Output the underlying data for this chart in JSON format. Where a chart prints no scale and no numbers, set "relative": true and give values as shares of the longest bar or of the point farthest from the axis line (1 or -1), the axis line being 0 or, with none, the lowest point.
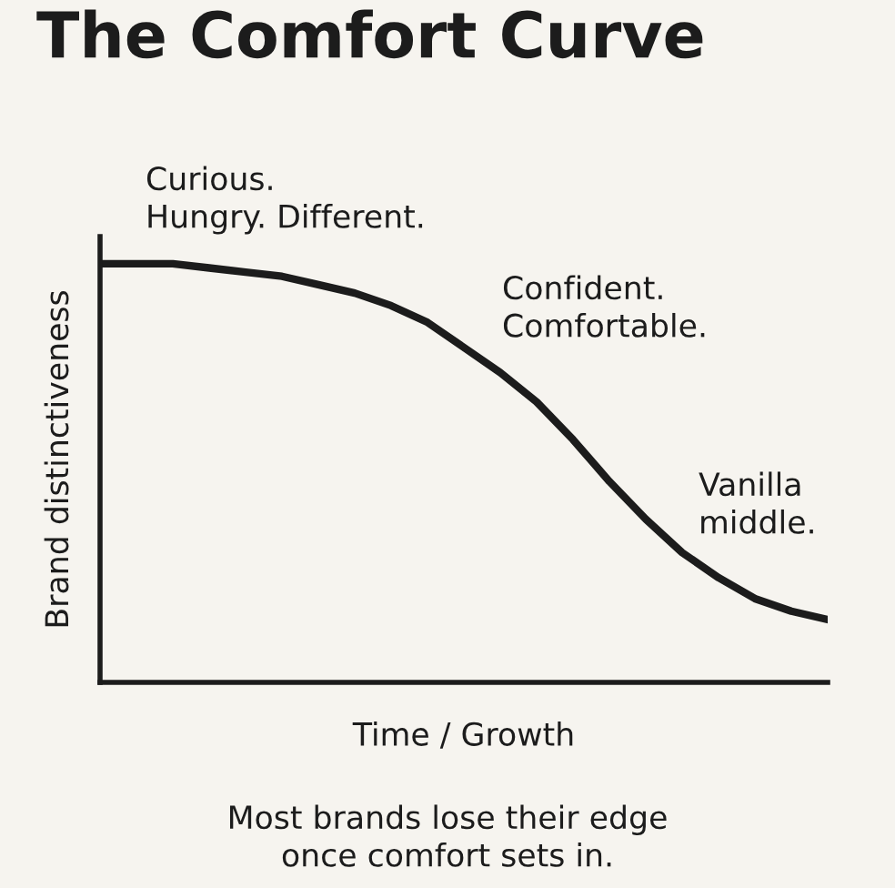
{
  "chart_data": {
    "type": "line",
    "title": "The Comfort Curve",
    "xlabel": "Time / Growth",
    "ylabel": "Brand distinctiveness",
    "relative": true,
    "categories": [
      null,
      null,
      null,
      null,
      null,
      null,
      null,
      null,
      null,
      null,
      null,
      null,
      null,
      null,
      null,
      null,
      null,
      null,
      null,
      null,
      null
    ],
    "series": [
      {
        "color": "#1c1c1c",
        "values": [
          1.0,
          1.0,
          1.0,
          0.99,
          0.98,
          0.97,
          0.95,
          0.93,
          0.9,
          0.86,
          0.8,
          0.74,
          0.67,
          0.58,
          0.48,
          0.39,
          0.31,
          0.25,
          0.2,
          0.17,
          0.15
        ]
      }
    ],
    "annotations": [
      "Curious.\nHungry. Different.",
      "Confident.\nComfortable.",
      "Vanilla\nmiddle.",
      "Most brands lose their edge\nonce comfort sets in."
    ],
    "grid": false,
    "legend": false,
    "marker": "none",
    "line_style": "solid"
  }
}
